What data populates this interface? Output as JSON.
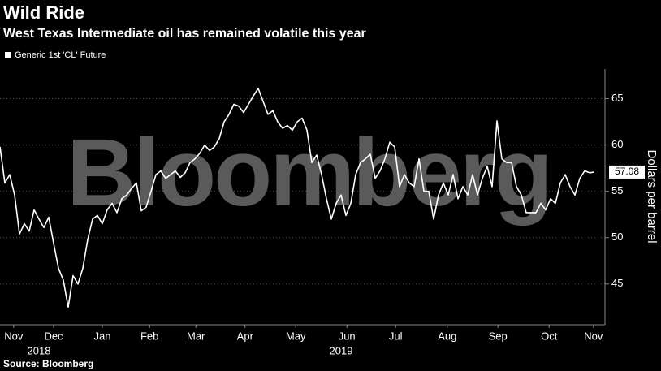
{
  "chart_data": {
    "type": "line",
    "title": "Wild Ride",
    "subtitle": "West Texas Intermediate oil has remained volatile this year",
    "source": "Source: Bloomberg",
    "watermark": "Bloomberg",
    "ylabel": "Dollars per barrel",
    "ylim": [
      40.6,
      68.2
    ],
    "yticks": [
      45,
      50,
      55,
      60,
      65
    ],
    "xlim": [
      0,
      122
    ],
    "xticks": [
      {
        "value": 2.8,
        "label": "Nov"
      },
      {
        "value": 11,
        "label": "Dec"
      },
      {
        "value": 21,
        "label": "Jan"
      },
      {
        "value": 30.7,
        "label": "Feb"
      },
      {
        "value": 40.2,
        "label": "Mar"
      },
      {
        "value": 50.3,
        "label": "Apr"
      },
      {
        "value": 60.7,
        "label": "May"
      },
      {
        "value": 71.2,
        "label": "Jun"
      },
      {
        "value": 81.2,
        "label": "Jul"
      },
      {
        "value": 91.8,
        "label": "Aug"
      },
      {
        "value": 102.2,
        "label": "Sep"
      },
      {
        "value": 112.7,
        "label": "Oct"
      },
      {
        "value": 121.8,
        "label": "Nov"
      }
    ],
    "year_labels": [
      {
        "value": 8,
        "label": "2018"
      },
      {
        "value": 70,
        "label": "2019"
      }
    ],
    "grid": true,
    "legend": "top-left",
    "series": [
      {
        "name": "Generic 1st 'CL' Future",
        "color": "#ffffff",
        "values": [
          59.8,
          55.9,
          56.8,
          54.6,
          50.4,
          51.5,
          50.7,
          53.0,
          52,
          51.1,
          52.2,
          49.4,
          46.7,
          45.4,
          42.5,
          45.9,
          45,
          46.7,
          49.8,
          52,
          52.4,
          51.5,
          53,
          53.7,
          52.7,
          54.2,
          54.6,
          55.3,
          55.9,
          52.9,
          53.3,
          55.0,
          56.8,
          57.2,
          56.4,
          56.8,
          57.2,
          56.5,
          57.0,
          58.1,
          58.5,
          59.1,
          60.0,
          59.4,
          59.8,
          60.7,
          62.5,
          63.3,
          64.4,
          64.2,
          63.5,
          64.4,
          65.3,
          66.1,
          64.7,
          63.3,
          63.7,
          62.5,
          61.8,
          62.1,
          61.6,
          62.5,
          62.9,
          61.6,
          58.1,
          58.9,
          56.8,
          54.2,
          52,
          53.7,
          54.6,
          52.4,
          53.7,
          56.8,
          58.1,
          58.5,
          59.0,
          56.4,
          57.2,
          58.5,
          60.3,
          59.8,
          55.5,
          56.8,
          55.9,
          55.5,
          58.5,
          55.0,
          55.0,
          52.0,
          54.6,
          55.9,
          54.6,
          56.8,
          54.2,
          55.5,
          54.6,
          56.8,
          54.6,
          56.4,
          57.7,
          55.5,
          62.6,
          58.5,
          58.1,
          58.1,
          55.5,
          54.6,
          52.7,
          52.7,
          52.7,
          53.7,
          53.0,
          54.2,
          53.7,
          55.9,
          56.8,
          55.5,
          54.6,
          56.4,
          57.2,
          57.0,
          57.08
        ]
      }
    ]
  }
}
